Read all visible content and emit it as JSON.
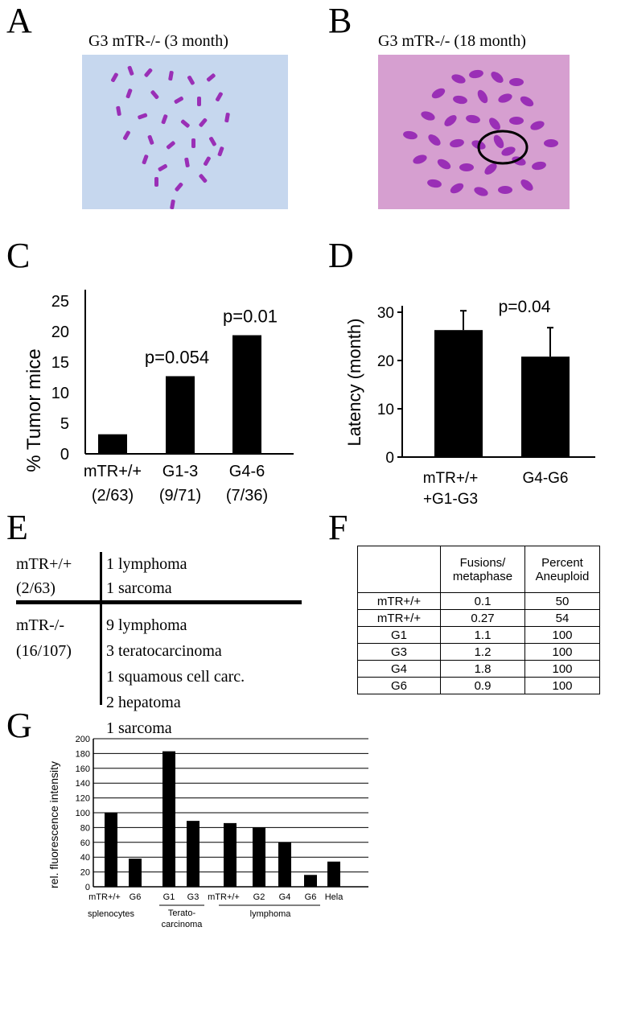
{
  "panels": {
    "A": {
      "letter": "A",
      "title": "G3 mTR-/- (3 month)"
    },
    "B": {
      "letter": "B",
      "title": "G3 mTR-/- (18 month)"
    },
    "C": {
      "letter": "C"
    },
    "D": {
      "letter": "D"
    },
    "E": {
      "letter": "E"
    },
    "F": {
      "letter": "F"
    },
    "G": {
      "letter": "G"
    }
  },
  "colors": {
    "micrographA_bg": "#c6d7ee",
    "micrographB_bg": "#d69fd0",
    "chromosome": "#9a2fb6",
    "bar": "#000000"
  },
  "chart_data": [
    {
      "panel": "C",
      "type": "bar",
      "ylabel": "% Tumor mice",
      "ylim": [
        0,
        25
      ],
      "yticks": [
        "0",
        "5",
        "10",
        "15",
        "20",
        "25"
      ],
      "categories": [
        "mTR+/+",
        "G1-3",
        "G4-6"
      ],
      "category_sub": [
        "(2/63)",
        "(9/71)",
        "(7/36)"
      ],
      "values": [
        3.2,
        12.7,
        19.4
      ],
      "annotations": [
        "",
        "p=0.054",
        "p=0.01"
      ]
    },
    {
      "panel": "D",
      "type": "bar",
      "ylabel": "Latency (month)",
      "ylim": [
        0,
        30
      ],
      "yticks": [
        "0",
        "10",
        "20",
        "30"
      ],
      "categories": [
        "mTR+/+\n+G1-G3",
        "G4-G6"
      ],
      "values": [
        26.3,
        20.8
      ],
      "errors": [
        4,
        6
      ],
      "annotation": "p=0.04"
    },
    {
      "panel": "G",
      "type": "bar",
      "ylabel": "rel. fluorescence intensity",
      "ylim": [
        0,
        200
      ],
      "yticks": [
        "0",
        "20",
        "40",
        "60",
        "80",
        "100",
        "120",
        "140",
        "160",
        "180",
        "200"
      ],
      "categories": [
        "mTR+/+",
        "G6",
        "G1",
        "G3",
        "mTR+/+",
        "G2",
        "G4",
        "G6",
        "Hela"
      ],
      "values": [
        100,
        38,
        183,
        89,
        86,
        80,
        60,
        16,
        34
      ],
      "groups": [
        "splenocytes",
        "Terato-\ncarcinoma",
        "lymphoma"
      ],
      "grid": true
    }
  ],
  "tableE": {
    "rows": [
      {
        "group": "mTR+/+",
        "count": "(2/63)",
        "tumors": [
          "1 lymphoma",
          "1 sarcoma"
        ]
      },
      {
        "group": "mTR-/-",
        "count": "(16/107)",
        "tumors": [
          "9 lymphoma",
          "3 teratocarcinoma",
          "1 squamous cell carc.",
          "2 hepatoma",
          "1 sarcoma"
        ]
      }
    ]
  },
  "tableF": {
    "headers": [
      "",
      "Fusions/\nmetaphase",
      "Percent\nAneuploid"
    ],
    "rows": [
      [
        "mTR+/+",
        "0.1",
        "50"
      ],
      [
        "mTR+/+",
        "0.27",
        "54"
      ],
      [
        "G1",
        "1.1",
        "100"
      ],
      [
        "G3",
        "1.2",
        "100"
      ],
      [
        "G4",
        "1.8",
        "100"
      ],
      [
        "G6",
        "0.9",
        "100"
      ]
    ]
  }
}
